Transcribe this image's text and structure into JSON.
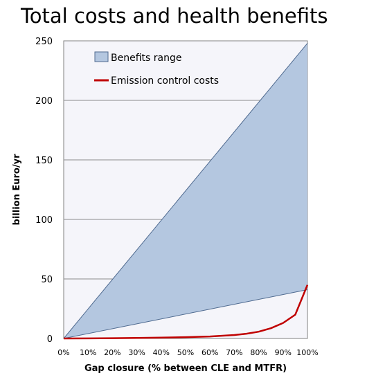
{
  "chart_data": {
    "type": "area",
    "title": "Total costs and health benefits",
    "xlabel": "Gap closure (% between CLE and MTFR)",
    "ylabel": "billion Euro/yr",
    "x": [
      0,
      10,
      20,
      30,
      40,
      50,
      60,
      70,
      75,
      80,
      85,
      90,
      95,
      100
    ],
    "x_tick_labels": [
      "0%",
      "10%",
      "20%",
      "30%",
      "40%",
      "50%",
      "60%",
      "70%",
      "80%",
      "90%",
      "100%"
    ],
    "x_ticks": [
      0,
      10,
      20,
      30,
      40,
      50,
      60,
      70,
      80,
      90,
      100
    ],
    "ylim": [
      0,
      250
    ],
    "y_ticks": [
      0,
      50,
      100,
      150,
      200,
      250
    ],
    "grid": true,
    "legend_position": "top-left",
    "series": [
      {
        "name": "Benefits range",
        "kind": "range",
        "x": [
          0,
          100
        ],
        "upper": [
          0,
          248
        ],
        "lower": [
          0,
          41
        ],
        "color": "#b4c7e0"
      },
      {
        "name": "Emission control costs",
        "kind": "line",
        "x": [
          0,
          10,
          20,
          30,
          40,
          50,
          60,
          70,
          75,
          80,
          85,
          90,
          95,
          100
        ],
        "values": [
          0,
          0.1,
          0.2,
          0.4,
          0.7,
          1.1,
          1.7,
          2.9,
          4,
          5.7,
          8.6,
          13,
          20,
          45
        ],
        "color": "#c00000"
      }
    ]
  }
}
